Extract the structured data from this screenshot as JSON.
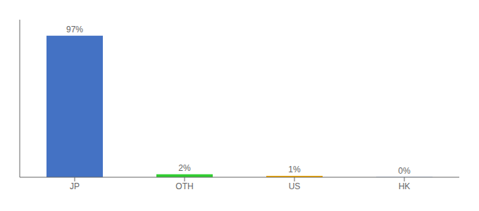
{
  "chart_data": {
    "type": "bar",
    "categories": [
      "JP",
      "OTH",
      "US",
      "HK"
    ],
    "values": [
      97,
      2,
      1,
      0.1
    ],
    "value_labels": [
      "97%",
      "2%",
      "1%",
      "0%"
    ],
    "colors": [
      "#4472c4",
      "#32cd32",
      "#f0a500",
      "#4472c4"
    ],
    "ylim": [
      0,
      108
    ],
    "grid": false,
    "data_labels": true,
    "tick_labels": "x"
  }
}
